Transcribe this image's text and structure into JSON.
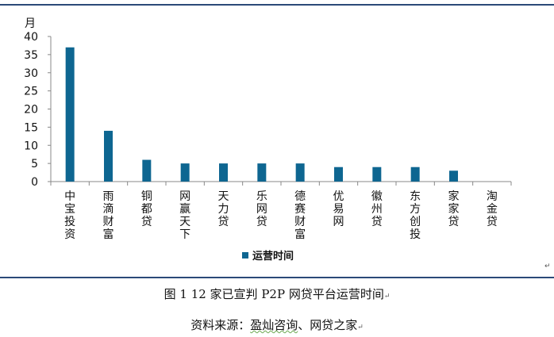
{
  "chart_data": {
    "type": "bar",
    "y_unit_label": "月",
    "categories": [
      "中宝投资",
      "雨滴财富",
      "铜都贷",
      "网赢天下",
      "天力贷",
      "乐网贷",
      "德赛财富",
      "优易网",
      "徽州贷",
      "东方创投",
      "家家贷",
      "淘金贷"
    ],
    "series": [
      {
        "name": "运营时间",
        "values": [
          37,
          14,
          6,
          5,
          5,
          5,
          5,
          4,
          4,
          4,
          3,
          0
        ]
      }
    ],
    "ylim": [
      0,
      40
    ],
    "yticks": [
      0,
      5,
      10,
      15,
      20,
      25,
      30,
      35,
      40
    ],
    "grid": false,
    "legend_position": "bottom",
    "bar_color": "#0e6691"
  },
  "caption": {
    "title": "图 1 12 家已宣判 P2P 网贷平台运营时间",
    "source_prefix": "资料来源：",
    "source_underlined": "盈灿咨询",
    "source_suffix": "、网贷之家"
  },
  "marks": {
    "paragraph": "↵"
  }
}
